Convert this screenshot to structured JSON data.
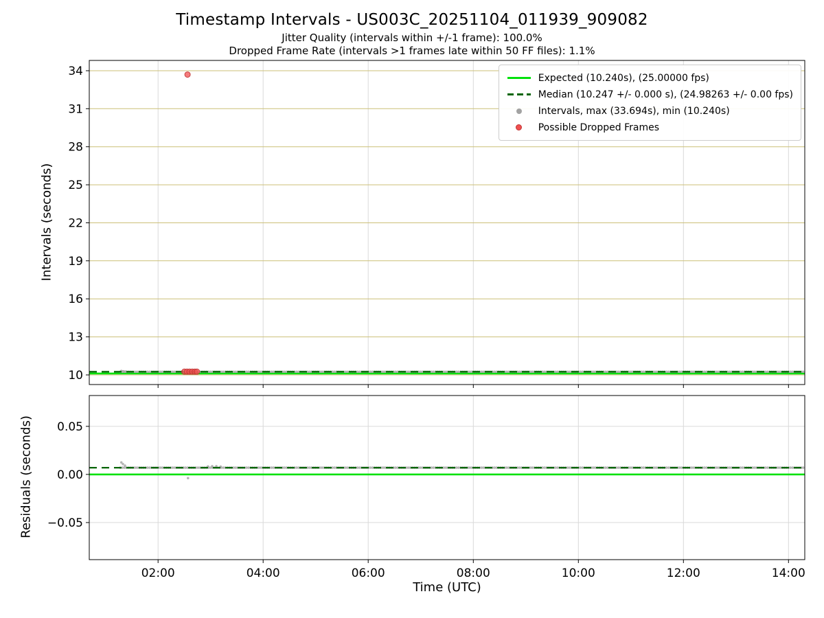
{
  "header": {
    "title": "Timestamp Intervals - US003C_20251104_011939_909082",
    "subtitle_jitter": "Jitter Quality (intervals within +/-1 frame): 100.0%",
    "subtitle_dropped": "Dropped Frame Rate (intervals >1 frames late within 50 FF files): 1.1%"
  },
  "xlabel": "Time (UTC)",
  "legend": {
    "items": [
      {
        "name": "expected",
        "glyph": "solid-line",
        "label": "Expected (10.240s), (25.00000 fps)"
      },
      {
        "name": "median",
        "glyph": "dashed-line",
        "label": "Median (10.247 +/- 0.000 s), (24.98263 +/- 0.00 fps)"
      },
      {
        "name": "intervals",
        "glyph": "gray-dot",
        "label": "Intervals, max (33.694s), min (10.240s)"
      },
      {
        "name": "dropped",
        "glyph": "red-dot",
        "label": "Possible Dropped Frames"
      }
    ]
  },
  "colors": {
    "expected_line": "#00e10b",
    "median_line": "#006400",
    "intervals_dot": "#a3a3a3",
    "dropped_fill": "#f05050",
    "dropped_edge": "#c03434",
    "grid_khaki": "#ccbf77",
    "grid_gray": "#d9d9d9",
    "axes": "#000000"
  },
  "xticks": [
    {
      "hour": 2,
      "label": "02:00"
    },
    {
      "hour": 4,
      "label": "04:00"
    },
    {
      "hour": 6,
      "label": "06:00"
    },
    {
      "hour": 8,
      "label": "08:00"
    },
    {
      "hour": 10,
      "label": "10:00"
    },
    {
      "hour": 12,
      "label": "12:00"
    },
    {
      "hour": 14,
      "label": "14:00"
    }
  ],
  "chart_data": [
    {
      "type": "scatter",
      "name": "intervals",
      "ylabel": "Intervals (seconds)",
      "ylim": [
        9.24,
        34.81
      ],
      "xlim_hours": [
        0.69,
        14.31
      ],
      "yticks": [
        {
          "value": 10,
          "label": "10"
        },
        {
          "value": 13,
          "label": "13"
        },
        {
          "value": 16,
          "label": "16"
        },
        {
          "value": 19,
          "label": "19"
        },
        {
          "value": 22,
          "label": "22"
        },
        {
          "value": 25,
          "label": "25"
        },
        {
          "value": 28,
          "label": "28"
        },
        {
          "value": 31,
          "label": "31"
        },
        {
          "value": 34,
          "label": "34"
        }
      ],
      "expected_value": 10.24,
      "expected_fps": 25.0,
      "median_value": 10.247,
      "median_fps": 24.98263,
      "max_interval": 33.694,
      "min_interval": 10.24,
      "jitter_quality_pct": 100.0,
      "dropped_frame_rate_pct": 1.1,
      "series_segment": {
        "from_hour": 1.28,
        "to_hour": 14.31,
        "value": 10.247,
        "step_hours": 0.04
      },
      "extra_points": [
        [
          1.3,
          10.31
        ],
        [
          1.34,
          10.285
        ],
        [
          1.38,
          10.265
        ]
      ],
      "dropped_points": [
        [
          2.5,
          10.253
        ],
        [
          2.55,
          10.253
        ],
        [
          2.6,
          10.253
        ],
        [
          2.65,
          10.253
        ],
        [
          2.7,
          10.253
        ],
        [
          2.74,
          10.253
        ],
        [
          2.56,
          33.694
        ]
      ]
    },
    {
      "type": "scatter",
      "name": "residuals",
      "ylabel": "Residuals (seconds)",
      "ylim": [
        -0.0886,
        0.0821
      ],
      "xlim_hours": [
        0.69,
        14.31
      ],
      "yticks": [
        {
          "value": -0.05,
          "label": "−0.05"
        },
        {
          "value": 0,
          "label": "0.00"
        },
        {
          "value": 0.05,
          "label": "0.05"
        }
      ],
      "expected_value": 0.0,
      "median_value": 0.007,
      "series_segment": {
        "from_hour": 1.28,
        "to_hour": 14.31,
        "value": 0.007,
        "step_hours": 0.04
      },
      "extra_points": [
        [
          1.3,
          0.0125
        ],
        [
          1.33,
          0.0108
        ],
        [
          1.37,
          0.0092
        ],
        [
          2.57,
          -0.0038
        ],
        [
          2.95,
          0.0083
        ],
        [
          3.03,
          0.0086
        ],
        [
          3.11,
          0.0086
        ],
        [
          3.19,
          0.0082
        ]
      ],
      "dropped_points": []
    }
  ]
}
